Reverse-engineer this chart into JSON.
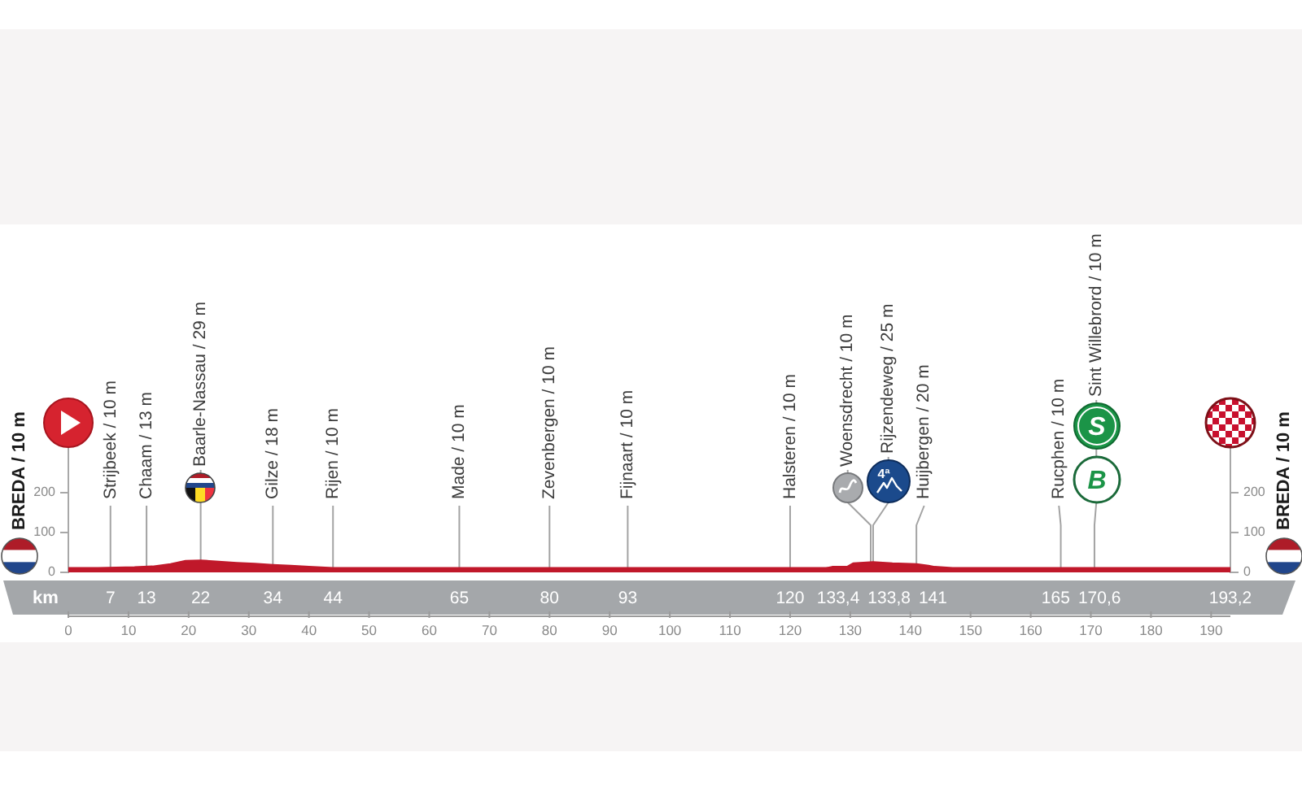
{
  "chart_data": {
    "type": "area",
    "x": [
      0,
      5,
      8,
      11,
      14,
      17,
      19.5,
      22,
      25,
      28,
      31,
      34,
      37,
      40,
      44,
      60,
      80,
      100,
      120,
      126,
      127,
      129.5,
      130.5,
      133.8,
      137,
      141,
      143,
      144,
      147,
      160,
      170.6,
      180,
      193.2
    ],
    "values": [
      10,
      10,
      11,
      12,
      14,
      20,
      28,
      29,
      26,
      23,
      21,
      18,
      16,
      13,
      10,
      10,
      10,
      10,
      10,
      10,
      13,
      13,
      22,
      25,
      22,
      20,
      16,
      13,
      10,
      10,
      10,
      10,
      10
    ],
    "color": "#c0182a",
    "xlabel": "km",
    "xlim": [
      0,
      193.2
    ],
    "xticks": [
      0,
      10,
      20,
      30,
      40,
      50,
      60,
      70,
      80,
      90,
      100,
      110,
      120,
      130,
      140,
      150,
      160,
      170,
      180,
      190
    ],
    "ylim": [
      0,
      350
    ],
    "yticks": [
      0,
      100,
      200
    ],
    "y2lim": [
      0,
      350
    ],
    "y2ticks": [
      0,
      100,
      200
    ],
    "annotations": [
      "BREDA / 10 m",
      {
        "text": "Strijbeek / 10 m",
        "x": 7,
        "y": 10
      },
      {
        "text": "Chaam / 13 m",
        "x": 13,
        "y": 13
      },
      {
        "text": "Baarle-Nassau / 29 m",
        "x": 22,
        "y": 29
      },
      {
        "text": "Gilze / 18 m",
        "x": 34,
        "y": 18
      },
      {
        "text": "Rijen / 10 m",
        "x": 44,
        "y": 10
      },
      {
        "text": "Made / 10 m",
        "x": 65,
        "y": 10
      },
      {
        "text": "Zevenbergen / 10 m",
        "x": 80,
        "y": 10
      },
      {
        "text": "Fijnaart / 10 m",
        "x": 93,
        "y": 10
      },
      {
        "text": "Halsteren / 10 m",
        "x": 120,
        "y": 10
      },
      {
        "text": "Woensdrecht / 10 m",
        "x": 133.4,
        "y": 10
      },
      {
        "text": "Rijzendeweg / 25 m",
        "x": 133.8,
        "y": 25
      },
      {
        "text": "Huijbergen / 20 m",
        "x": 141,
        "y": 20
      },
      {
        "text": "Rucphen / 10 m",
        "x": 165,
        "y": 10
      },
      {
        "text": "Sint Willebrord / 10 m",
        "x": 170.6,
        "y": 10
      },
      {
        "text": "4ª",
        "x": 133.8
      },
      {
        "text": "S",
        "x": 170.6
      },
      {
        "text": "B",
        "x": 170.6
      },
      "7",
      "13",
      "22",
      "34",
      "44",
      "65",
      "80",
      "93",
      "120",
      "133,4",
      "133,8",
      "141",
      "165",
      "170,6",
      "193,2",
      "BREDA / 10 m"
    ]
  }
}
